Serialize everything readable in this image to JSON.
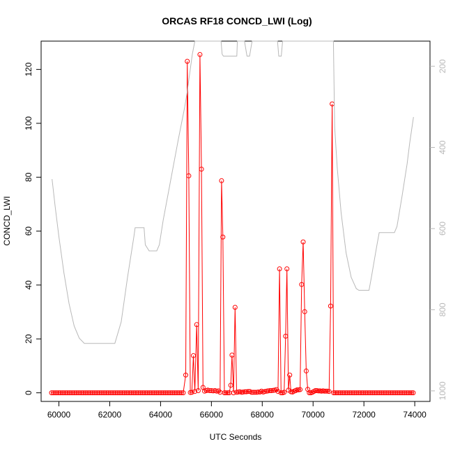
{
  "chart_data": {
    "type": "line",
    "title": "ORCAS RF18 CONCD_LWI (Log)",
    "xlabel": "UTC Seconds",
    "ylabel": "CONCD_LWI",
    "xlim": [
      59300,
      74600
    ],
    "ylim": [
      -3.2,
      130.5
    ],
    "x_ticks": [
      60000,
      62000,
      64000,
      66000,
      68000,
      70000,
      72000,
      74000
    ],
    "y_ticks": [
      0,
      20,
      40,
      60,
      80,
      100,
      120
    ],
    "y2_ticks": [
      200,
      400,
      600,
      800,
      1000
    ],
    "y2lim": [
      1026,
      138
    ],
    "grid": false,
    "series": [
      {
        "color": "#ff0000",
        "points": [
          [
            59710,
            0
          ],
          [
            59780,
            0
          ],
          [
            59850,
            0
          ],
          [
            59920,
            0
          ],
          [
            59990,
            0
          ],
          [
            60060,
            0
          ],
          [
            60130,
            0
          ],
          [
            60200,
            0
          ],
          [
            60270,
            0
          ],
          [
            60340,
            0
          ],
          [
            60410,
            0
          ],
          [
            60480,
            0
          ],
          [
            60550,
            0
          ],
          [
            60620,
            0
          ],
          [
            60690,
            0
          ],
          [
            60760,
            0
          ],
          [
            60830,
            0
          ],
          [
            60900,
            0
          ],
          [
            60970,
            0
          ],
          [
            61040,
            0
          ],
          [
            61110,
            0
          ],
          [
            61180,
            0
          ],
          [
            61250,
            0
          ],
          [
            61320,
            0
          ],
          [
            61390,
            0
          ],
          [
            61460,
            0
          ],
          [
            61530,
            0
          ],
          [
            61600,
            0
          ],
          [
            61670,
            0
          ],
          [
            61740,
            0
          ],
          [
            61810,
            0
          ],
          [
            61880,
            0
          ],
          [
            61950,
            0
          ],
          [
            62020,
            0
          ],
          [
            62090,
            0
          ],
          [
            62160,
            0
          ],
          [
            62230,
            0
          ],
          [
            62300,
            0
          ],
          [
            62370,
            0
          ],
          [
            62440,
            0
          ],
          [
            62510,
            0
          ],
          [
            62580,
            0
          ],
          [
            62650,
            0
          ],
          [
            62720,
            0
          ],
          [
            62790,
            0
          ],
          [
            62860,
            0
          ],
          [
            62930,
            0
          ],
          [
            63000,
            0
          ],
          [
            63070,
            0
          ],
          [
            63140,
            0
          ],
          [
            63210,
            0
          ],
          [
            63280,
            0
          ],
          [
            63350,
            0
          ],
          [
            63420,
            0
          ],
          [
            63490,
            0
          ],
          [
            63560,
            0
          ],
          [
            63630,
            0
          ],
          [
            63700,
            0
          ],
          [
            63770,
            0
          ],
          [
            63840,
            0
          ],
          [
            63910,
            0
          ],
          [
            63980,
            0
          ],
          [
            64050,
            0
          ],
          [
            64120,
            0
          ],
          [
            64190,
            0
          ],
          [
            64260,
            0
          ],
          [
            64330,
            0
          ],
          [
            64400,
            0
          ],
          [
            64470,
            0
          ],
          [
            64540,
            0
          ],
          [
            64610,
            0
          ],
          [
            64680,
            0
          ],
          [
            64750,
            0
          ],
          [
            64820,
            0
          ],
          [
            64890,
            0
          ],
          [
            64990,
            6.6
          ],
          [
            65050,
            123
          ],
          [
            65110,
            80.5
          ],
          [
            65170,
            0.1
          ],
          [
            65230,
            0.2
          ],
          [
            65290,
            13.8
          ],
          [
            65350,
            0.5
          ],
          [
            65420,
            25.3
          ],
          [
            65480,
            0.8
          ],
          [
            65550,
            125.5
          ],
          [
            65610,
            83
          ],
          [
            65670,
            2
          ],
          [
            65730,
            0.6
          ],
          [
            65800,
            0.8
          ],
          [
            65860,
            1
          ],
          [
            65930,
            0.8
          ],
          [
            66000,
            0.8
          ],
          [
            66070,
            0.7
          ],
          [
            66140,
            0.8
          ],
          [
            66210,
            0.6
          ],
          [
            66280,
            0.7
          ],
          [
            66340,
            0.2
          ],
          [
            66400,
            78.7
          ],
          [
            66450,
            57.8
          ],
          [
            66510,
            0
          ],
          [
            66570,
            0
          ],
          [
            66640,
            0
          ],
          [
            66700,
            0
          ],
          [
            66760,
            2.8
          ],
          [
            66810,
            14
          ],
          [
            66870,
            0
          ],
          [
            66930,
            31.7
          ],
          [
            66990,
            0.2
          ],
          [
            67060,
            0.3
          ],
          [
            67120,
            0.4
          ],
          [
            67190,
            0.2
          ],
          [
            67250,
            0.3
          ],
          [
            67320,
            0.4
          ],
          [
            67380,
            0.4
          ],
          [
            67450,
            0.5
          ],
          [
            67510,
            0.5
          ],
          [
            67580,
            0.2
          ],
          [
            67640,
            0.2
          ],
          [
            67710,
            0.2
          ],
          [
            67780,
            0.2
          ],
          [
            67840,
            0.3
          ],
          [
            67910,
            0.3
          ],
          [
            67970,
            0.6
          ],
          [
            68040,
            0.3
          ],
          [
            68100,
            0.5
          ],
          [
            68170,
            0.6
          ],
          [
            68230,
            0.7
          ],
          [
            68300,
            0.8
          ],
          [
            68360,
            0.8
          ],
          [
            68430,
            0.9
          ],
          [
            68490,
            1
          ],
          [
            68560,
            1.2
          ],
          [
            68620,
            0.5
          ],
          [
            68680,
            46
          ],
          [
            68740,
            0
          ],
          [
            68800,
            0
          ],
          [
            68860,
            0.2
          ],
          [
            68920,
            21
          ],
          [
            68970,
            46
          ],
          [
            69030,
            1
          ],
          [
            69080,
            6.6
          ],
          [
            69130,
            0.4
          ],
          [
            69190,
            0.3
          ],
          [
            69250,
            0.6
          ],
          [
            69310,
            0.8
          ],
          [
            69370,
            1.1
          ],
          [
            69430,
            1.1
          ],
          [
            69490,
            1.2
          ],
          [
            69550,
            40.2
          ],
          [
            69610,
            56
          ],
          [
            69670,
            30.1
          ],
          [
            69730,
            8.1
          ],
          [
            69790,
            1.3
          ],
          [
            69850,
            0
          ],
          [
            69910,
            0
          ],
          [
            69970,
            0.2
          ],
          [
            70030,
            0.5
          ],
          [
            70090,
            0.8
          ],
          [
            70150,
            0.8
          ],
          [
            70210,
            0.7
          ],
          [
            70270,
            0.7
          ],
          [
            70330,
            0.6
          ],
          [
            70390,
            0.7
          ],
          [
            70450,
            0.6
          ],
          [
            70510,
            0.6
          ],
          [
            70570,
            0.6
          ],
          [
            70630,
            0.5
          ],
          [
            70690,
            32.2
          ],
          [
            70750,
            107.2
          ],
          [
            70810,
            0
          ],
          [
            70870,
            0
          ],
          [
            70940,
            0
          ],
          [
            71010,
            0
          ],
          [
            71080,
            0
          ],
          [
            71150,
            0
          ],
          [
            71220,
            0
          ],
          [
            71290,
            0
          ],
          [
            71360,
            0
          ],
          [
            71430,
            0
          ],
          [
            71500,
            0
          ],
          [
            71570,
            0
          ],
          [
            71640,
            0
          ],
          [
            71710,
            0
          ],
          [
            71780,
            0
          ],
          [
            71850,
            0
          ],
          [
            71920,
            0
          ],
          [
            71990,
            0
          ],
          [
            72060,
            0
          ],
          [
            72130,
            0
          ],
          [
            72200,
            0
          ],
          [
            72270,
            0
          ],
          [
            72340,
            0
          ],
          [
            72410,
            0
          ],
          [
            72480,
            0
          ],
          [
            72550,
            0
          ],
          [
            72620,
            0
          ],
          [
            72690,
            0
          ],
          [
            72760,
            0
          ],
          [
            72830,
            0
          ],
          [
            72900,
            0
          ],
          [
            72970,
            0
          ],
          [
            73040,
            0
          ],
          [
            73110,
            0
          ],
          [
            73180,
            0
          ],
          [
            73250,
            0
          ],
          [
            73320,
            0
          ],
          [
            73390,
            0
          ],
          [
            73460,
            0
          ],
          [
            73530,
            0
          ],
          [
            73600,
            0
          ],
          [
            73670,
            0
          ],
          [
            73740,
            0
          ],
          [
            73810,
            0
          ],
          [
            73880,
            0
          ],
          [
            73940,
            0
          ]
        ]
      },
      {
        "color": "#b8b8b8",
        "axis": "right",
        "points": [
          [
            59730,
            478
          ],
          [
            59850,
            545
          ],
          [
            60000,
            620
          ],
          [
            60200,
            710
          ],
          [
            60400,
            785
          ],
          [
            60600,
            840
          ],
          [
            60800,
            870
          ],
          [
            61000,
            883
          ],
          [
            61500,
            883
          ],
          [
            62200,
            883
          ],
          [
            62450,
            830
          ],
          [
            62700,
            720
          ],
          [
            62950,
            620
          ],
          [
            63000,
            598
          ],
          [
            63350,
            598
          ],
          [
            63400,
            640
          ],
          [
            63550,
            655
          ],
          [
            63850,
            655
          ],
          [
            63950,
            640
          ],
          [
            64100,
            580
          ],
          [
            64400,
            480
          ],
          [
            64700,
            380
          ],
          [
            64950,
            300
          ],
          [
            65050,
            262
          ],
          [
            65150,
            215
          ],
          [
            65250,
            170
          ],
          [
            65350,
            138
          ],
          [
            65800,
            138
          ],
          [
            66000,
            138
          ],
          [
            66300,
            138
          ],
          [
            66380,
            138
          ],
          [
            66420,
            170
          ],
          [
            66470,
            175
          ],
          [
            66600,
            175
          ],
          [
            67000,
            175
          ],
          [
            67020,
            138
          ],
          [
            67100,
            138
          ],
          [
            67300,
            138
          ],
          [
            67400,
            175
          ],
          [
            67500,
            175
          ],
          [
            67600,
            138
          ],
          [
            67700,
            138
          ],
          [
            68000,
            138
          ],
          [
            68300,
            138
          ],
          [
            68600,
            138
          ],
          [
            68650,
            175
          ],
          [
            68750,
            175
          ],
          [
            68800,
            138
          ],
          [
            69000,
            138
          ],
          [
            69200,
            138
          ],
          [
            69400,
            138
          ],
          [
            69600,
            138
          ],
          [
            69800,
            138
          ],
          [
            70000,
            138
          ],
          [
            70200,
            138
          ],
          [
            70400,
            138
          ],
          [
            70600,
            138
          ],
          [
            70800,
            138
          ],
          [
            70850,
            350
          ],
          [
            70950,
            450
          ],
          [
            71100,
            560
          ],
          [
            71300,
            660
          ],
          [
            71500,
            720
          ],
          [
            71700,
            748
          ],
          [
            71800,
            752
          ],
          [
            72100,
            752
          ],
          [
            72200,
            752
          ],
          [
            72300,
            718
          ],
          [
            72500,
            645
          ],
          [
            72600,
            610
          ],
          [
            73200,
            610
          ],
          [
            73300,
            595
          ],
          [
            73500,
            520
          ],
          [
            73700,
            440
          ],
          [
            73800,
            390
          ],
          [
            73950,
            325
          ]
        ]
      }
    ]
  }
}
